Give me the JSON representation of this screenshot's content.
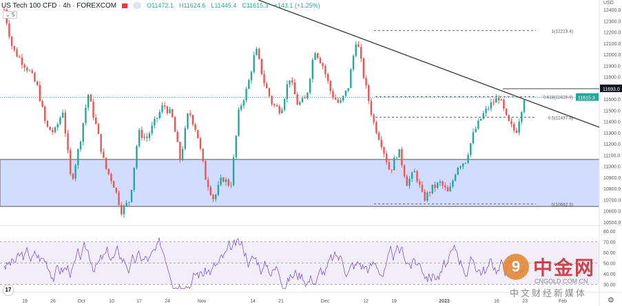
{
  "header": {
    "symbol": "US Tech 100 CFD · 4h · FOREXCOM",
    "open": "O11472.1",
    "high": "H11624.6",
    "low": "L11445.4",
    "close": "C11615.3",
    "change": "+143.1 (+1.25%)",
    "indicator_collapsed": "5"
  },
  "price_axis": {
    "currency": "USD",
    "current_price": "11615.3",
    "line_price": "11693.0",
    "current_color": "#26a69a"
  },
  "chart_data": {
    "type": "candlestick",
    "title": "US Tech 100 CFD · 4h · FOREXCOM",
    "ylim": [
      10450,
      12480
    ],
    "yticks": [
      "12400.0",
      "12300.0",
      "12200.0",
      "12100.0",
      "12000.0",
      "11900.0",
      "11800.0",
      "11600.0",
      "11500.0",
      "11400.0",
      "11300.0",
      "11200.0",
      "11100.0",
      "11000.0",
      "10900.0",
      "10800.0",
      "10700.0",
      "10600.0",
      "10500.0"
    ],
    "xticks": [
      "19",
      "26",
      "Oct",
      "10",
      "17",
      "24",
      "Nov",
      "14",
      "21",
      "Dec",
      "12",
      "19",
      "2023",
      "16",
      "23",
      "Feb"
    ],
    "path_closes": [
      12400,
      12050,
      11950,
      11850,
      11700,
      11350,
      11300,
      11500,
      10850,
      11200,
      11650,
      11350,
      11000,
      10850,
      10600,
      10700,
      11300,
      11250,
      11400,
      11550,
      11450,
      11050,
      11500,
      11300,
      10900,
      10700,
      10900,
      10820,
      11500,
      11700,
      12050,
      11750,
      11550,
      11500,
      11800,
      11550,
      11600,
      12050,
      11900,
      11650,
      11550,
      11700,
      12150,
      11750,
      11400,
      11200,
      10950,
      11150,
      10850,
      10950,
      10700,
      10800,
      10850,
      10750,
      11000,
      11050,
      11300,
      11450,
      11550,
      11620,
      11400,
      11300,
      11615
    ],
    "fib_levels": [
      {
        "label": "1(12213.4)",
        "price": 12213.4
      },
      {
        "label": "0.618(11620.9)",
        "price": 11620.9
      },
      {
        "label": "0.5(11437.8)",
        "price": 11437.8
      },
      {
        "label": "0(10662.3)",
        "price": 10662.3
      }
    ],
    "zone": [
      10640,
      11060
    ],
    "trendline": [
      12700,
      11350
    ],
    "rsi": {
      "ylim": [
        25,
        85
      ],
      "yticks": [
        "80.00",
        "70.00",
        "60.00",
        "50.00",
        "40.00",
        "30.00"
      ],
      "band": [
        30,
        70
      ]
    }
  },
  "watermark": {
    "logo": "9",
    "name": "中金网",
    "site": "CNGOLD.COM.CN",
    "caption": "中文财经新媒体"
  },
  "colors": {
    "up": "#26a69a",
    "down": "#ef5350",
    "zone": "#d1dcff",
    "rsi": "#7e57c2"
  }
}
